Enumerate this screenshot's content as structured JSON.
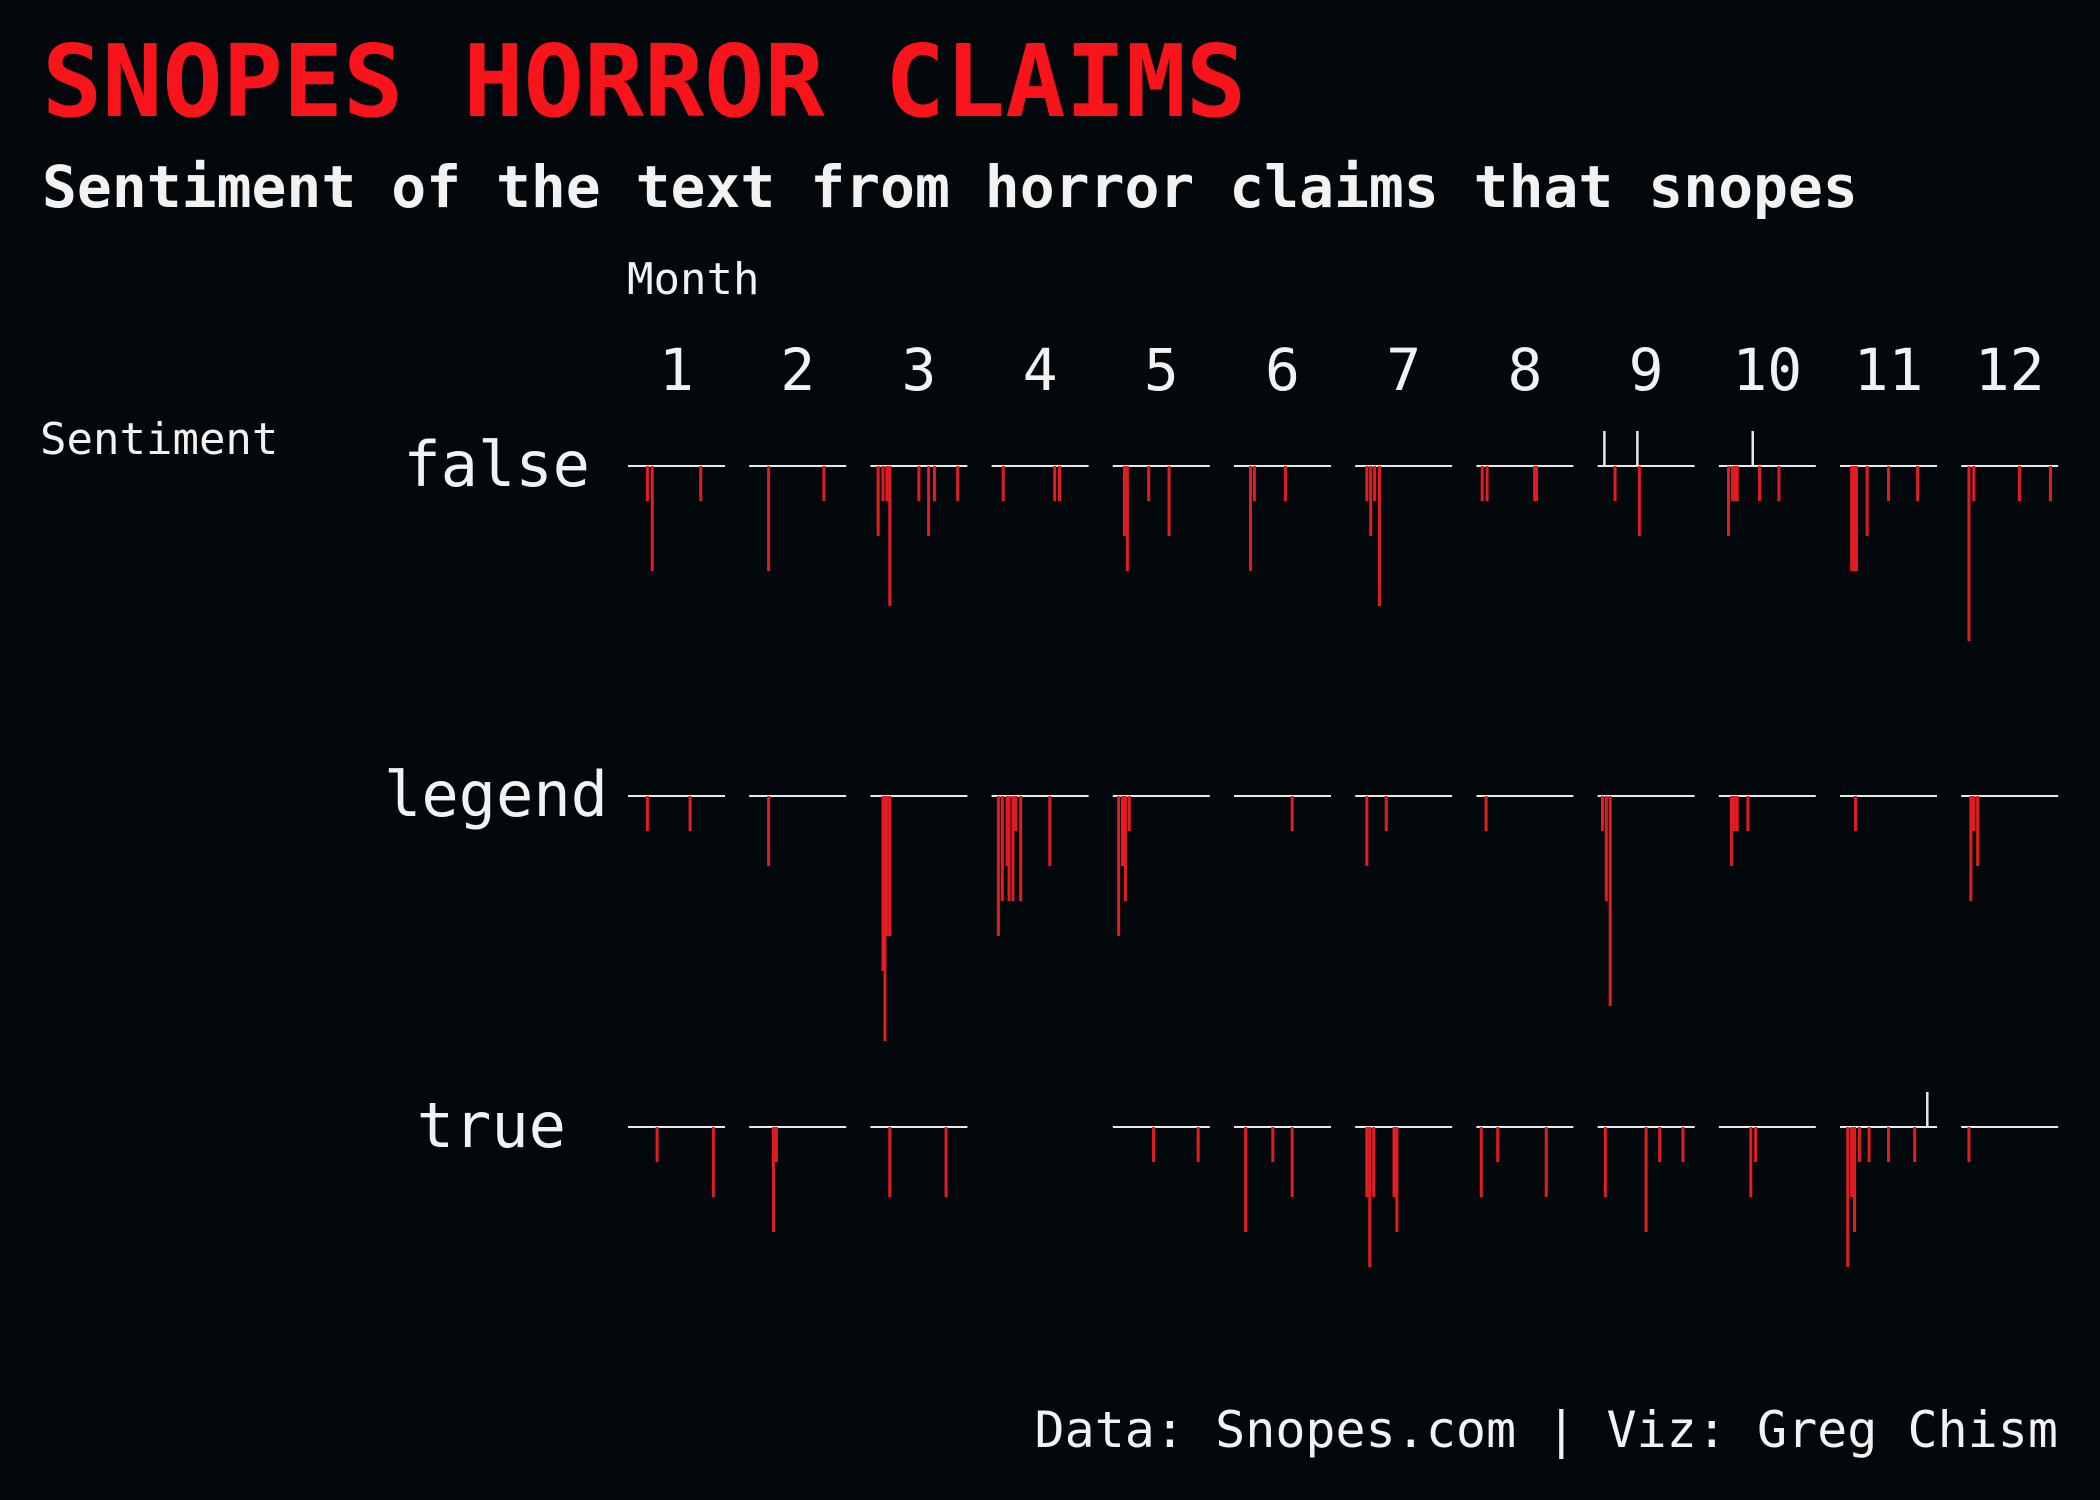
{
  "header": {
    "title": "SNOPES HORROR CLAIMS",
    "subtitle": "Sentiment of the text from horror claims that snopes"
  },
  "caption": "Data: Snopes.com | Viz: Greg Chism",
  "colors": {
    "background": "#03080c",
    "negative": "#e11d22",
    "positive": "#e8e8e8",
    "title": "#f7141a"
  },
  "chart_data": {
    "type": "bar",
    "description_facets": "small multiples by month (columns) and rating (rows)",
    "col_facet_title": "Month",
    "row_facet_title": "Sentiment",
    "months": [
      "1",
      "2",
      "3",
      "4",
      "5",
      "6",
      "7",
      "8",
      "9",
      "10",
      "11",
      "12"
    ],
    "rows": [
      {
        "label": "false",
        "panels": [
          [
            [
              0.2,
              -0.5
            ],
            [
              0.25,
              -1.5
            ],
            [
              0.75,
              -0.5
            ]
          ],
          [
            [
              0.2,
              -1.5
            ],
            [
              0.77,
              -0.5
            ]
          ],
          [
            [
              0.08,
              -1
            ],
            [
              0.13,
              -0.5
            ],
            [
              0.17,
              -0.5
            ],
            [
              0.2,
              -2
            ],
            [
              0.5,
              -0.5
            ],
            [
              0.6,
              -1
            ],
            [
              0.66,
              -0.5
            ],
            [
              0.9,
              -0.5
            ]
          ],
          [
            [
              0.12,
              -0.5
            ],
            [
              0.65,
              -0.5
            ],
            [
              0.7,
              -0.5
            ]
          ],
          [
            [
              0.12,
              -1
            ],
            [
              0.15,
              -1.5
            ],
            [
              0.37,
              -0.5
            ],
            [
              0.58,
              -1
            ]
          ],
          [
            [
              0.17,
              -1.5
            ],
            [
              0.21,
              -0.5
            ],
            [
              0.53,
              -0.5
            ]
          ],
          [
            [
              0.12,
              -0.5
            ],
            [
              0.16,
              -1
            ],
            [
              0.2,
              -0.5
            ],
            [
              0.25,
              -2
            ]
          ],
          [
            [
              0.06,
              -0.5
            ],
            [
              0.11,
              -0.5
            ],
            [
              0.6,
              -0.5
            ],
            [
              0.62,
              -0.5
            ]
          ],
          [
            [
              0.07,
              0.5
            ],
            [
              0.18,
              -0.5
            ],
            [
              0.41,
              0.5
            ],
            [
              0.43,
              -1
            ]
          ],
          [
            [
              0.1,
              -1
            ],
            [
              0.14,
              -0.5
            ],
            [
              0.17,
              -0.5
            ],
            [
              0.19,
              -0.5
            ],
            [
              0.35,
              0.5
            ],
            [
              0.42,
              -0.5
            ],
            [
              0.62,
              -0.5
            ]
          ],
          [
            [
              0.12,
              -1.5
            ],
            [
              0.15,
              -1.5
            ],
            [
              0.17,
              -1.5
            ],
            [
              0.28,
              -1
            ],
            [
              0.5,
              -0.5
            ],
            [
              0.8,
              -0.5
            ]
          ],
          [
            [
              0.08,
              -2.5
            ],
            [
              0.13,
              -0.5
            ],
            [
              0.6,
              -0.5
            ],
            [
              0.92,
              -0.5
            ]
          ]
        ]
      },
      {
        "label": "legend",
        "panels": [
          [
            [
              0.2,
              -0.5
            ],
            [
              0.64,
              -0.5
            ]
          ],
          [
            [
              0.2,
              -1
            ]
          ],
          [
            [
              0.13,
              -2.5
            ],
            [
              0.15,
              -3.5
            ],
            [
              0.17,
              -2
            ],
            [
              0.2,
              -2
            ]
          ],
          [
            [
              0.07,
              -2
            ],
            [
              0.11,
              -1.5
            ],
            [
              0.16,
              -1
            ],
            [
              0.18,
              -1.5
            ],
            [
              0.22,
              -1.5
            ],
            [
              0.25,
              -0.5
            ],
            [
              0.3,
              -1.5
            ],
            [
              0.6,
              -1
            ]
          ],
          [
            [
              0.06,
              -2
            ],
            [
              0.1,
              -1
            ],
            [
              0.13,
              -1.5
            ],
            [
              0.17,
              -0.5
            ]
          ],
          [
            [
              0.6,
              -0.5
            ]
          ],
          [
            [
              0.12,
              -1
            ],
            [
              0.32,
              -0.5
            ]
          ],
          [
            [
              0.1,
              -0.5
            ]
          ],
          [
            [
              0.05,
              -0.5
            ],
            [
              0.09,
              -1.5
            ],
            [
              0.13,
              -3
            ]
          ],
          [
            [
              0.13,
              -1
            ],
            [
              0.16,
              -0.5
            ],
            [
              0.19,
              -0.5
            ],
            [
              0.3,
              -0.5
            ]
          ],
          [
            [
              0.16,
              -0.5
            ]
          ],
          [
            [
              0.1,
              -1.5
            ],
            [
              0.13,
              -0.5
            ],
            [
              0.17,
              -1
            ]
          ]
        ]
      },
      {
        "label": "true",
        "panels": [
          [
            [
              0.3,
              -0.5
            ],
            [
              0.88,
              -1
            ]
          ],
          [
            [
              0.25,
              -1.5
            ],
            [
              0.28,
              -0.5
            ]
          ],
          [
            [
              0.2,
              -1
            ],
            [
              0.78,
              -1
            ]
          ],
          [],
          [
            [
              0.42,
              -0.5
            ],
            [
              0.88,
              -0.5
            ]
          ],
          [
            [
              0.12,
              -1.5
            ],
            [
              0.4,
              -0.5
            ],
            [
              0.6,
              -1
            ]
          ],
          [
            [
              0.12,
              -1
            ],
            [
              0.15,
              -2
            ],
            [
              0.19,
              -1
            ],
            [
              0.4,
              -1
            ],
            [
              0.43,
              -1.5
            ]
          ],
          [
            [
              0.05,
              -1
            ],
            [
              0.22,
              -0.5
            ],
            [
              0.72,
              -1
            ]
          ],
          [
            [
              0.08,
              -1
            ],
            [
              0.5,
              -1.5
            ],
            [
              0.64,
              -0.5
            ],
            [
              0.88,
              -0.5
            ]
          ],
          [
            [
              0.33,
              -1
            ],
            [
              0.38,
              -0.5
            ]
          ],
          [
            [
              0.08,
              -2
            ],
            [
              0.12,
              -1
            ],
            [
              0.15,
              -1.5
            ],
            [
              0.2,
              -0.5
            ],
            [
              0.3,
              -0.5
            ],
            [
              0.5,
              -0.5
            ],
            [
              0.77,
              -0.5
            ],
            [
              0.9,
              0.5
            ]
          ],
          [
            [
              0.08,
              -0.5
            ]
          ]
        ]
      }
    ]
  }
}
